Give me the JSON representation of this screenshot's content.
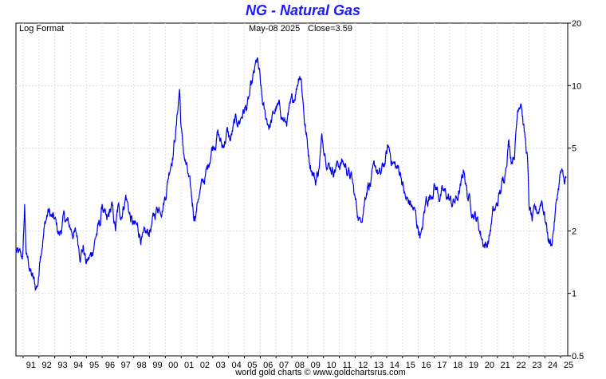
{
  "chart_data": {
    "type": "line",
    "title": "NG  -  Natural Gas",
    "scale_label": "Log Format",
    "date_label": "May-08  2025",
    "close_label": "Close=3.59",
    "footer": "world gold charts © www.goldchartsrus.com",
    "y_scale": "log",
    "ylim": [
      0.5,
      20
    ],
    "y_ticks": [
      "20",
      "10",
      "5",
      "2",
      "1",
      "0.5"
    ],
    "y_tick_values": [
      20,
      10,
      5,
      2,
      1,
      0.5
    ],
    "x_ticks": [
      "91",
      "92",
      "93",
      "94",
      "95",
      "96",
      "97",
      "98",
      "99",
      "00",
      "01",
      "02",
      "03",
      "04",
      "05",
      "06",
      "07",
      "08",
      "09",
      "10",
      "11",
      "12",
      "13",
      "14",
      "15",
      "16",
      "17",
      "18",
      "19",
      "20",
      "21",
      "22",
      "23",
      "24",
      "25"
    ],
    "x_range": [
      1990.55,
      2025.45
    ],
    "grid": true,
    "line_color": "#0000ee",
    "series": [
      {
        "x": [
          1990.55,
          1990.75,
          1990.9,
          1991.0,
          1991.1,
          1991.2,
          1991.35,
          1991.5,
          1991.65,
          1991.8,
          1991.9,
          1992.0,
          1992.05,
          1992.2,
          1992.4,
          1992.6,
          1992.8,
          1993.0,
          1993.3,
          1993.6,
          1993.9,
          1994.1,
          1994.4,
          1994.6,
          1994.8,
          1995.0,
          1995.3,
          1995.6,
          1995.9,
          1996.0,
          1996.3,
          1996.6,
          1996.85,
          1997.0,
          1997.2,
          1997.5,
          1997.8,
          1998.0,
          1998.3,
          1998.6,
          1998.9,
          1999.0,
          1999.2,
          1999.5,
          1999.8,
          2000.0,
          2000.3,
          2000.5,
          2000.7,
          2000.9,
          2000.97,
          2001.1,
          2001.4,
          2001.6,
          2001.8,
          2001.95,
          2002.1,
          2002.4,
          2002.7,
          2002.9,
          2003.15,
          2003.3,
          2003.6,
          2003.9,
          2004.1,
          2004.4,
          2004.7,
          2004.9,
          2005.2,
          2005.5,
          2005.8,
          2005.95,
          2006.1,
          2006.3,
          2006.6,
          2006.8,
          2007.0,
          2007.3,
          2007.6,
          2007.9,
          2008.1,
          2008.3,
          2008.5,
          2008.6,
          2008.8,
          2008.95,
          2009.1,
          2009.3,
          2009.5,
          2009.7,
          2009.9,
          2010.1,
          2010.3,
          2010.6,
          2010.9,
          2011.2,
          2011.5,
          2011.8,
          2012.0,
          2012.3,
          2012.5,
          2012.8,
          2013.0,
          2013.3,
          2013.6,
          2013.9,
          2014.1,
          2014.3,
          2014.6,
          2014.9,
          2015.2,
          2015.5,
          2015.8,
          2015.95,
          2016.2,
          2016.5,
          2016.8,
          2017.0,
          2017.3,
          2017.6,
          2017.9,
          2018.1,
          2018.4,
          2018.7,
          2018.9,
          2019.1,
          2019.4,
          2019.7,
          2019.9,
          2020.1,
          2020.3,
          2020.5,
          2020.7,
          2020.9,
          2021.1,
          2021.4,
          2021.7,
          2021.9,
          2022.1,
          2022.3,
          2022.5,
          2022.7,
          2022.9,
          2023.0,
          2023.2,
          2023.4,
          2023.6,
          2023.8,
          2024.0,
          2024.2,
          2024.4,
          2024.6,
          2024.8,
          2025.0,
          2025.2,
          2025.35
        ],
        "values": [
          1.6,
          1.5,
          1.45,
          1.55,
          2.6,
          1.5,
          1.4,
          1.25,
          1.15,
          1.05,
          1.1,
          1.2,
          1.5,
          1.8,
          2.2,
          2.5,
          2.3,
          2.2,
          1.9,
          2.3,
          2.1,
          2.0,
          1.9,
          1.6,
          1.7,
          1.4,
          1.5,
          1.9,
          2.2,
          2.7,
          2.1,
          2.6,
          2.0,
          2.5,
          2.4,
          3.0,
          2.3,
          2.1,
          2.0,
          1.8,
          1.9,
          2.0,
          2.2,
          2.6,
          2.7,
          3.0,
          4.2,
          5.0,
          6.5,
          9.8,
          7.0,
          5.0,
          3.8,
          3.0,
          2.4,
          2.5,
          3.0,
          3.4,
          4.0,
          5.0,
          5.5,
          6.0,
          5.0,
          6.0,
          5.4,
          6.5,
          6.8,
          7.5,
          8.0,
          10.0,
          13.0,
          11.0,
          8.5,
          7.0,
          6.5,
          7.0,
          7.8,
          7.5,
          6.5,
          7.5,
          8.5,
          10.0,
          12.0,
          11.0,
          7.0,
          5.5,
          4.5,
          4.0,
          3.5,
          4.0,
          5.5,
          5.0,
          4.3,
          4.0,
          4.2,
          4.3,
          4.0,
          3.5,
          2.8,
          2.2,
          2.6,
          3.5,
          3.4,
          4.0,
          3.6,
          4.3,
          5.0,
          4.5,
          4.0,
          3.8,
          2.8,
          2.7,
          2.4,
          2.1,
          1.9,
          2.8,
          3.0,
          3.4,
          3.0,
          3.0,
          2.9,
          2.7,
          2.8,
          3.2,
          4.0,
          3.0,
          2.6,
          2.3,
          2.0,
          1.8,
          1.7,
          1.9,
          2.4,
          2.5,
          2.9,
          3.5,
          5.5,
          4.5,
          5.0,
          8.0,
          9.0,
          6.0,
          4.5,
          2.6,
          2.2,
          2.4,
          2.5,
          2.9,
          2.4,
          1.9,
          1.7,
          2.2,
          3.0,
          3.8,
          3.4,
          3.59
        ]
      }
    ]
  }
}
